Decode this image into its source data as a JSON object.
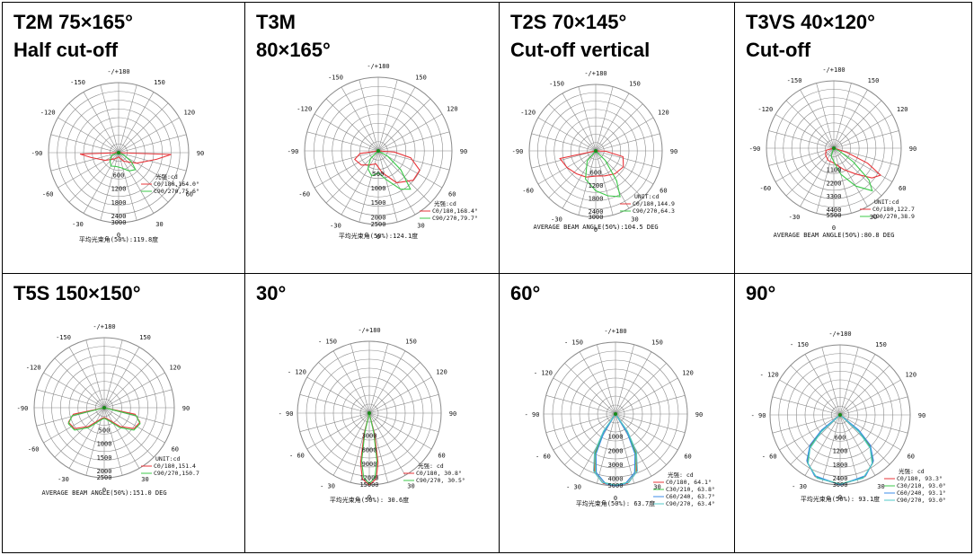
{
  "panels": [
    {
      "id": "t2m",
      "title_lines": [
        "T2M 75×165°",
        "Half cut-off"
      ],
      "radial_labels": [
        "600",
        "1200",
        "1800",
        "2400",
        "3000"
      ],
      "unit_label": "光强:cd",
      "legend": [
        "C0/180,164.0°",
        "C90/270,75.6°"
      ],
      "legend_colors": [
        "#e8353a",
        "#3cc84a"
      ],
      "footer": "平均光束角(50%):119.8度",
      "angle_labels": [
        "-/+180",
        "-150",
        "150",
        "-120",
        "120",
        "-90",
        "90",
        "-60",
        "60",
        "-30",
        "30",
        "0"
      ]
    },
    {
      "id": "t3m",
      "title_lines": [
        "T3M",
        "80×165°"
      ],
      "radial_labels": [
        "500",
        "1000",
        "1500",
        "2000",
        "2500"
      ],
      "unit_label": "光强:cd",
      "legend": [
        "C0/180,168.4°",
        "C90/270,79.7°"
      ],
      "legend_colors": [
        "#e8353a",
        "#3cc84a"
      ],
      "footer": "平均光束角(50%):124.1度",
      "angle_labels": [
        "-/+180",
        "-150",
        "150",
        "-120",
        "120",
        "-90",
        "90",
        "-60",
        "60",
        "-30",
        "30",
        "0"
      ]
    },
    {
      "id": "t2s",
      "title_lines": [
        "T2S 70×145°",
        "Cut-off vertical"
      ],
      "radial_labels": [
        "600",
        "1200",
        "1800",
        "2400",
        "3000"
      ],
      "unit_label": "UNIT:cd",
      "legend": [
        "C0/180,144.9",
        "C90/270,64.3"
      ],
      "legend_colors": [
        "#e8353a",
        "#3cc84a"
      ],
      "footer": "AVERAGE BEAM ANGLE(50%):104.5 DEG",
      "angle_labels": [
        "-/+180",
        "-150",
        "150",
        "-120",
        "120",
        "-90",
        "90",
        "-60",
        "60",
        "-30",
        "30",
        "0"
      ]
    },
    {
      "id": "t3vs",
      "title_lines": [
        "T3VS 40×120°",
        "Cut-off"
      ],
      "radial_labels": [
        "1100",
        "2200",
        "3300",
        "4400",
        "5500"
      ],
      "unit_label": "UNIT:cd",
      "legend": [
        "C0/180,122.7",
        "C90/270,38.9"
      ],
      "legend_colors": [
        "#e8353a",
        "#3cc84a"
      ],
      "footer": "AVERAGE BEAM ANGLE(50%):80.8 DEG",
      "angle_labels": [
        "-/+180",
        "-150",
        "150",
        "-120",
        "120",
        "-90",
        "90",
        "-60",
        "60",
        "-30",
        "30",
        "0"
      ]
    },
    {
      "id": "t5s",
      "title_lines": [
        "T5S 150×150°"
      ],
      "radial_labels": [
        "500",
        "1000",
        "1500",
        "2000",
        "2500"
      ],
      "unit_label": "UNIT:cd",
      "legend": [
        "C0/180,151.4",
        "C90/270,150.7"
      ],
      "legend_colors": [
        "#e8353a",
        "#3cc84a"
      ],
      "footer": "AVERAGE BEAM ANGLE(50%):151.0 DEG",
      "angle_labels": [
        "-/+180",
        "-150",
        "150",
        "-120",
        "120",
        "-90",
        "90",
        "-60",
        "60",
        "-30",
        "30",
        "0"
      ]
    },
    {
      "id": "d30",
      "title_lines": [
        "30°"
      ],
      "radial_labels": [
        "3000",
        "6000",
        "9000",
        "12000",
        "15000"
      ],
      "unit_label": "光强: cd",
      "legend": [
        "C0/180, 30.8°",
        "C90/270, 30.5°"
      ],
      "legend_colors": [
        "#e8353a",
        "#3cc84a"
      ],
      "footer": "平均光束角(50%): 30.6度",
      "angle_labels": [
        "-/+180",
        "- 150",
        "150",
        "- 120",
        "120",
        "- 90",
        "90",
        "- 60",
        "60",
        "- 30",
        "30",
        "0"
      ]
    },
    {
      "id": "d60",
      "title_lines": [
        "60°"
      ],
      "radial_labels": [
        "1000",
        "2000",
        "3000",
        "4000",
        "5000"
      ],
      "unit_label": "光强: cd",
      "legend": [
        "C0/180, 64.1°",
        "C30/210, 63.8°",
        "C60/240, 63.7°",
        "C90/270, 63.4°"
      ],
      "legend_colors": [
        "#e8353a",
        "#3cc84a",
        "#3c8ce8",
        "#50c8c8"
      ],
      "footer": "平均光束角(50%): 63.7度",
      "angle_labels": [
        "-/+180",
        "- 150",
        "150",
        "- 120",
        "120",
        "- 90",
        "90",
        "- 60",
        "60",
        "- 30",
        "30",
        "0"
      ]
    },
    {
      "id": "d90",
      "title_lines": [
        "90°"
      ],
      "radial_labels": [
        "600",
        "1200",
        "1800",
        "2400",
        "3000"
      ],
      "unit_label": "光强: cd",
      "legend": [
        "C0/180, 93.3°",
        "C30/210, 93.0°",
        "C60/240, 93.1°",
        "C90/270, 93.0°"
      ],
      "legend_colors": [
        "#e8353a",
        "#3cc84a",
        "#3c8ce8",
        "#50c8c8"
      ],
      "footer": "平均光束角(50%): 93.1度",
      "angle_labels": [
        "-/+180",
        "- 150",
        "150",
        "- 120",
        "120",
        "- 90",
        "90",
        "- 60",
        "60",
        "- 30",
        "30",
        "0"
      ]
    }
  ]
}
